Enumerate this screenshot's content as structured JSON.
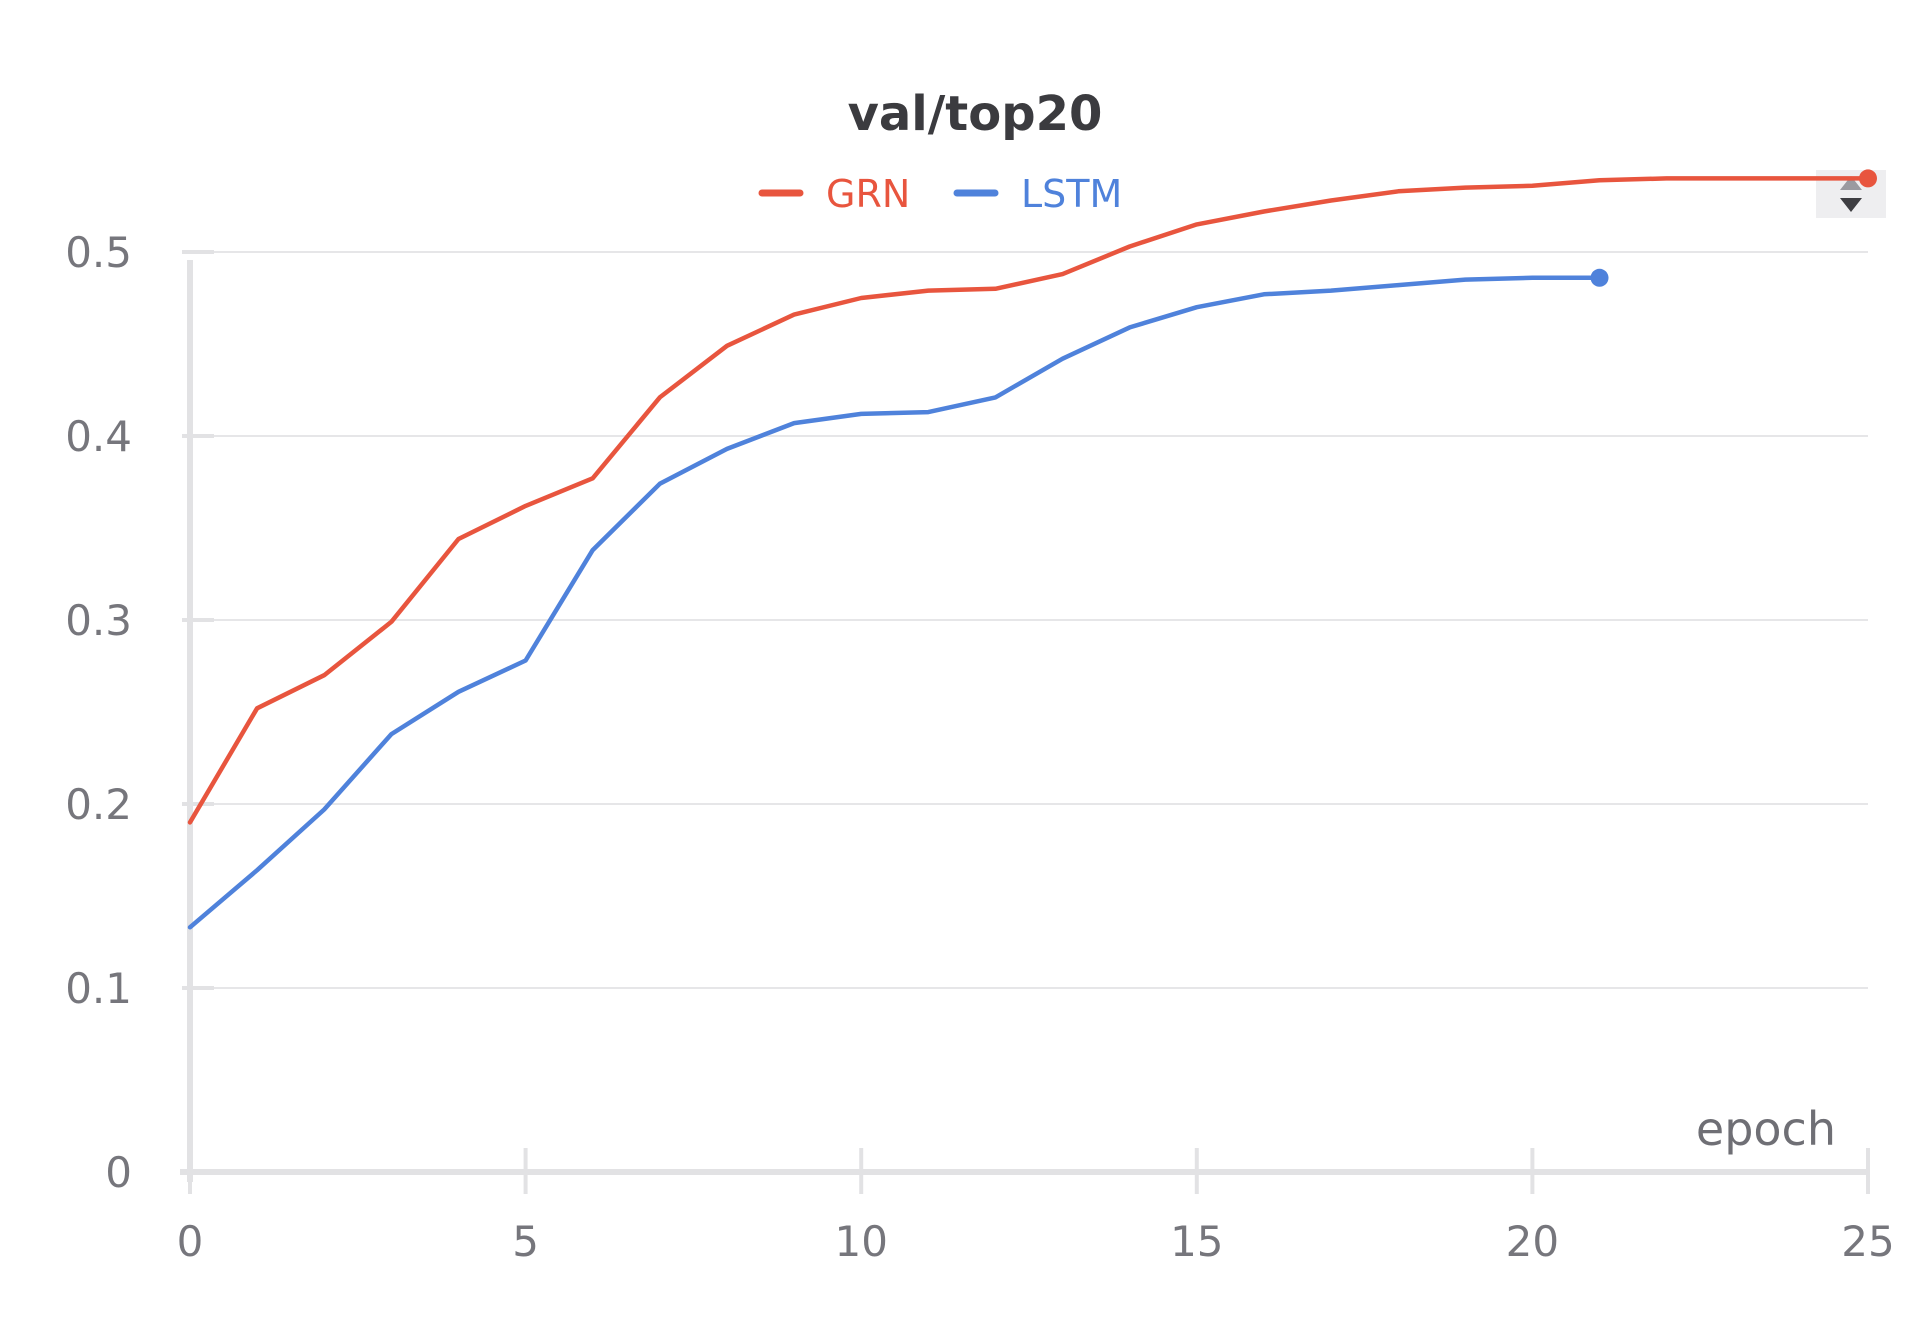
{
  "chart_data": {
    "type": "line",
    "title": "val/top20",
    "xlabel": "epoch",
    "ylabel": "",
    "xlim": [
      0,
      25
    ],
    "ylim": [
      0,
      0.55
    ],
    "xticks": [
      0,
      5,
      10,
      15,
      20,
      25
    ],
    "xtick_labels": [
      "0",
      "5",
      "10",
      "15",
      "20",
      "25"
    ],
    "yticks": [
      0,
      0.1,
      0.2,
      0.3,
      0.4,
      0.5
    ],
    "ytick_labels": [
      "0",
      "0.1",
      "0.2",
      "0.3",
      "0.4",
      "0.5"
    ],
    "grid": true,
    "legend_position": "top-center",
    "series": [
      {
        "name": "GRN",
        "color": "#e8553e",
        "x": [
          0,
          1,
          2,
          3,
          4,
          5,
          6,
          7,
          8,
          9,
          10,
          11,
          12,
          13,
          14,
          15,
          16,
          17,
          18,
          19,
          20,
          21,
          22,
          23,
          24,
          25
        ],
        "values": [
          0.19,
          0.252,
          0.27,
          0.299,
          0.344,
          0.362,
          0.377,
          0.421,
          0.449,
          0.466,
          0.475,
          0.479,
          0.48,
          0.488,
          0.503,
          0.515,
          0.522,
          0.528,
          0.533,
          0.535,
          0.536,
          0.539,
          0.54,
          0.54,
          0.54,
          0.54
        ]
      },
      {
        "name": "LSTM",
        "color": "#4f82db",
        "x": [
          0,
          1,
          2,
          3,
          4,
          5,
          6,
          7,
          8,
          9,
          10,
          11,
          12,
          13,
          14,
          15,
          16,
          17,
          18,
          19,
          20,
          21
        ],
        "values": [
          0.133,
          0.164,
          0.197,
          0.238,
          0.261,
          0.278,
          0.338,
          0.374,
          0.393,
          0.407,
          0.412,
          0.413,
          0.421,
          0.442,
          0.459,
          0.47,
          0.477,
          0.479,
          0.482,
          0.485,
          0.486,
          0.486
        ]
      }
    ]
  },
  "controls": {
    "sort_icon": "sort-up-down-icon"
  }
}
